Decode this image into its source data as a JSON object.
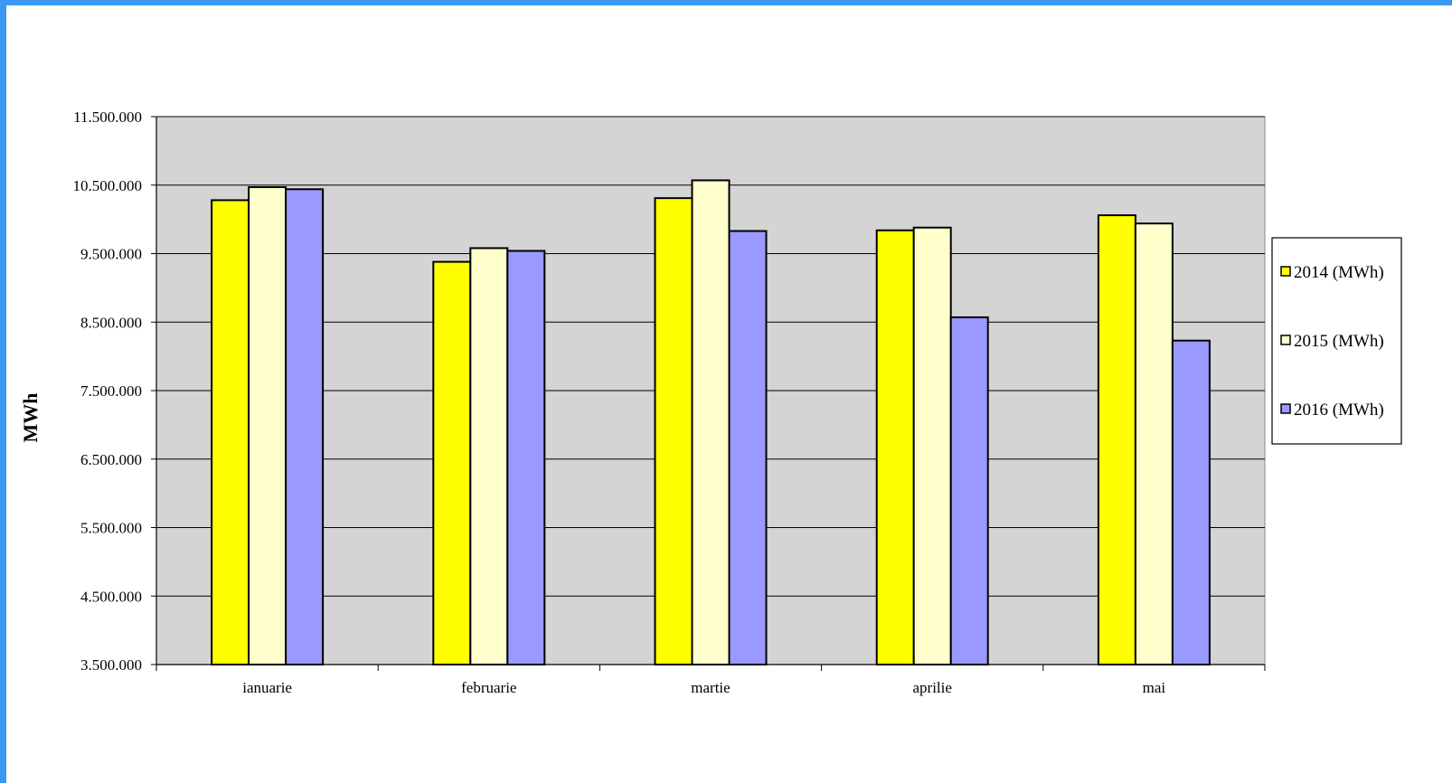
{
  "chart_data": {
    "type": "bar",
    "title": "",
    "xlabel": "",
    "ylabel": "MWh",
    "ylim": [
      3500000,
      11500000
    ],
    "yticks": [
      3500000,
      4500000,
      5500000,
      6500000,
      7500000,
      8500000,
      9500000,
      10500000,
      11500000
    ],
    "ytick_labels": [
      "3.500.000",
      "4.500.000",
      "5.500.000",
      "6.500.000",
      "7.500.000",
      "8.500.000",
      "9.500.000",
      "10.500.000",
      "11.500.000"
    ],
    "categories": [
      "ianuarie",
      "februarie",
      "martie",
      "aprilie",
      "mai"
    ],
    "series": [
      {
        "name": "2014 (MWh)",
        "color": "#ffff00",
        "values": [
          10280000,
          9380000,
          10310000,
          9840000,
          10060000
        ]
      },
      {
        "name": "2015 (MWh)",
        "color": "#ffffcc",
        "values": [
          10470000,
          9580000,
          10570000,
          9880000,
          9940000
        ]
      },
      {
        "name": "2016 (MWh)",
        "color": "#9999ff",
        "values": [
          10440000,
          9540000,
          9830000,
          8570000,
          8230000
        ]
      }
    ],
    "plot_background": "#d4d4d4",
    "grid": true,
    "legend_position": "right"
  }
}
